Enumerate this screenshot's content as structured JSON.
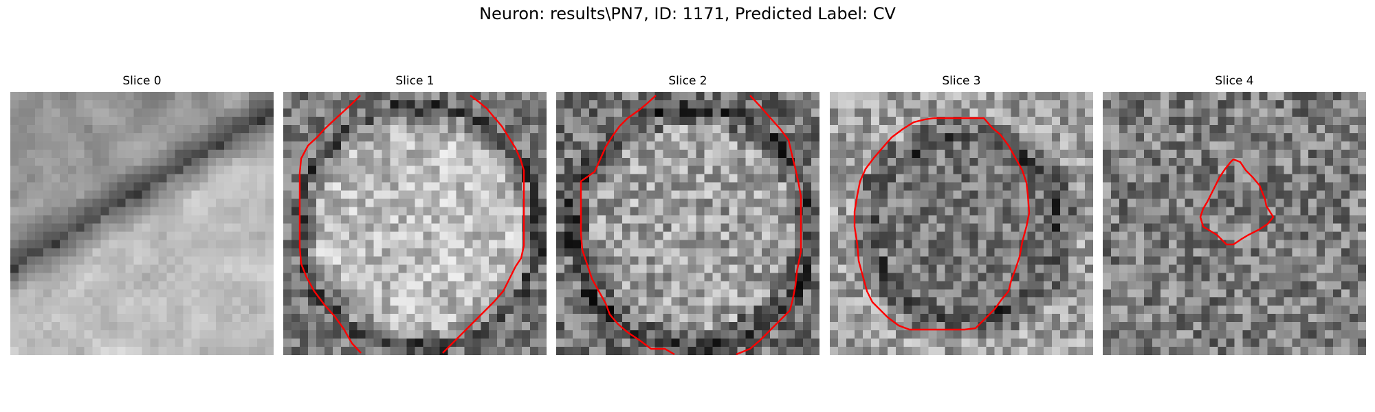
{
  "figure": {
    "title": "Neuron: results\\PN7, ID: 1171, Predicted Label: CV",
    "contour_color": "#ff0000"
  },
  "panels": [
    {
      "title": "Slice 0",
      "image": "grayscale EM patch, dark diagonal membrane band",
      "has_contour": false
    },
    {
      "title": "Slice 1",
      "image": "grayscale EM patch, bright round vesicle",
      "has_contour": true
    },
    {
      "title": "Slice 2",
      "image": "grayscale EM patch, round vesicle with darker rim",
      "has_contour": true
    },
    {
      "title": "Slice 3",
      "image": "grayscale EM patch, darker round vesicle",
      "has_contour": true
    },
    {
      "title": "Slice 4",
      "image": "grayscale EM patch, small vesicle cross-section",
      "has_contour": true
    }
  ]
}
